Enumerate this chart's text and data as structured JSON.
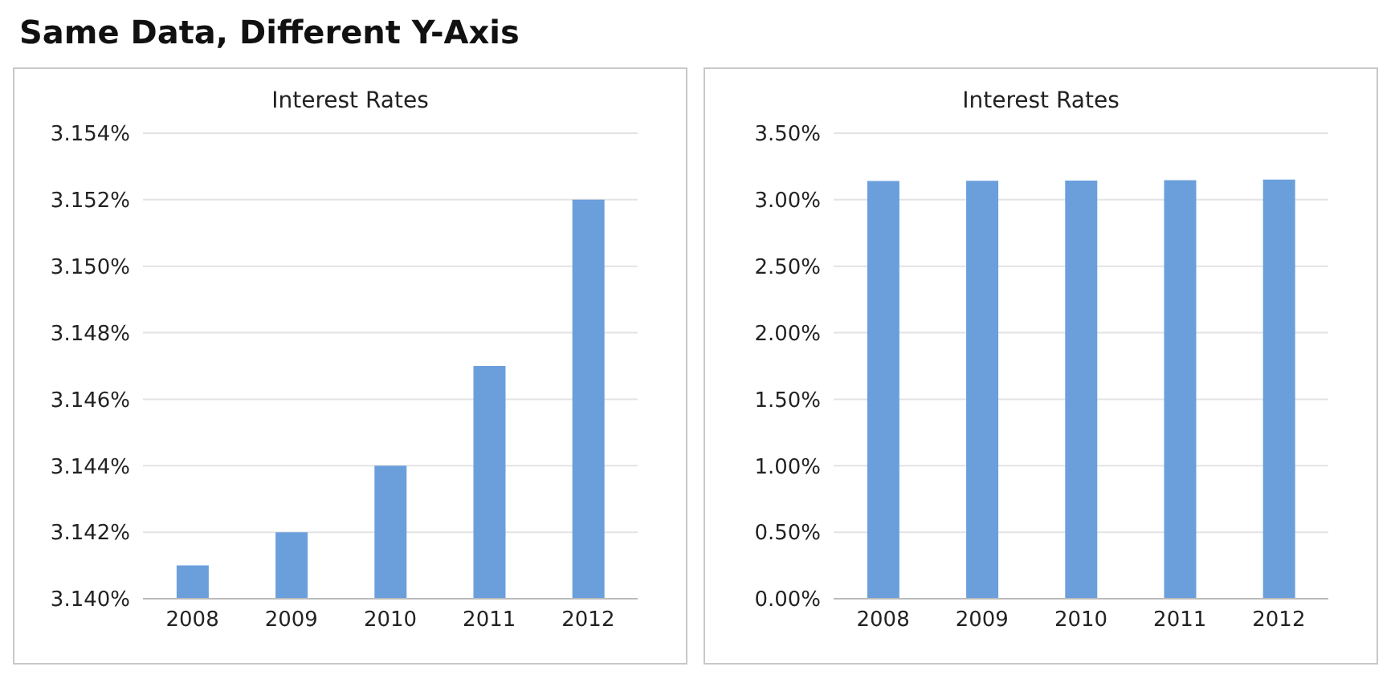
{
  "chart_data": [
    {
      "type": "bar",
      "title": "Interest Rates",
      "annotations": [
        "Same Data, Different Y-Axis"
      ],
      "categories": [
        "2008",
        "2009",
        "2010",
        "2011",
        "2012"
      ],
      "values": [
        3.141,
        3.142,
        3.144,
        3.147,
        3.152
      ],
      "color": "#6a9fdc",
      "ylim": [
        3.14,
        3.154
      ],
      "yticks": [
        {
          "value": 3.14,
          "label": "3.140%"
        },
        {
          "value": 3.142,
          "label": "3.142%"
        },
        {
          "value": 3.144,
          "label": "3.144%"
        },
        {
          "value": 3.146,
          "label": "3.146%"
        },
        {
          "value": 3.148,
          "label": "3.148%"
        },
        {
          "value": 3.15,
          "label": "3.150%"
        },
        {
          "value": 3.152,
          "label": "3.152%"
        },
        {
          "value": 3.154,
          "label": "3.154%"
        }
      ],
      "grid": "y",
      "legend": false
    },
    {
      "type": "bar",
      "title": "Interest Rates",
      "categories": [
        "2008",
        "2009",
        "2010",
        "2011",
        "2012"
      ],
      "values": [
        3.141,
        3.142,
        3.144,
        3.147,
        3.152
      ],
      "color": "#6a9fdc",
      "ylim": [
        0,
        3.5
      ],
      "yticks": [
        {
          "value": 0,
          "label": "0.00%"
        },
        {
          "value": 0.5,
          "label": "0.50%"
        },
        {
          "value": 1,
          "label": "1.00%"
        },
        {
          "value": 1.5,
          "label": "1.50%"
        },
        {
          "value": 2,
          "label": "2.00%"
        },
        {
          "value": 2.5,
          "label": "2.50%"
        },
        {
          "value": 3,
          "label": "3.00%"
        },
        {
          "value": 3.5,
          "label": "3.50%"
        }
      ],
      "grid": "y",
      "legend": false
    }
  ]
}
